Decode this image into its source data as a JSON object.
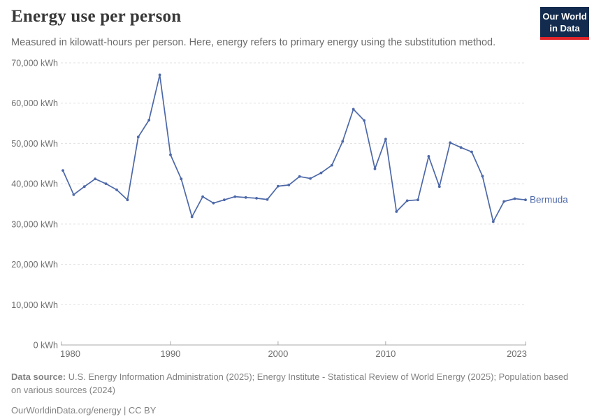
{
  "header": {
    "title": "Energy use per person",
    "subtitle": "Measured in kilowatt-hours per person. Here, energy refers to primary energy using the substitution method.",
    "logo": {
      "line1": "Our World",
      "line2": "in Data"
    }
  },
  "colors": {
    "line": "#4d68a8",
    "logo_bg": "#122b4e",
    "logo_accent": "#e0242a",
    "grid": "#e0e0e0",
    "axis": "#a9a9a9",
    "tick_text": "#6e6e6e"
  },
  "chart_data": {
    "type": "line",
    "title": "Energy use per person",
    "xlabel": "",
    "ylabel": "",
    "unit": "kWh",
    "ylim": [
      0,
      70000
    ],
    "grid": "horizontal-dashed",
    "legend_position": "end-of-line",
    "x": [
      1980,
      1981,
      1982,
      1983,
      1984,
      1985,
      1986,
      1987,
      1988,
      1989,
      1990,
      1991,
      1992,
      1993,
      1994,
      1995,
      1996,
      1997,
      1998,
      1999,
      2000,
      2001,
      2002,
      2003,
      2004,
      2005,
      2006,
      2007,
      2008,
      2009,
      2010,
      2011,
      2012,
      2013,
      2014,
      2015,
      2016,
      2017,
      2018,
      2019,
      2020,
      2021,
      2022,
      2023
    ],
    "series": [
      {
        "name": "Bermuda",
        "color": "#4d68a8",
        "values": [
          43300,
          37300,
          39300,
          41200,
          40000,
          38500,
          36000,
          51600,
          55800,
          67000,
          47200,
          41200,
          31800,
          36800,
          35200,
          36000,
          36800,
          36600,
          36400,
          36100,
          39400,
          39700,
          41800,
          41300,
          42700,
          44600,
          50500,
          58500,
          55700,
          43700,
          51100,
          33100,
          35800,
          36000,
          46800,
          39300,
          50200,
          49000,
          47900,
          41900,
          30600,
          35600,
          36300,
          36000
        ]
      }
    ],
    "y_ticks": [
      0,
      10000,
      20000,
      30000,
      40000,
      50000,
      60000,
      70000
    ],
    "y_tick_labels": [
      "0 kWh",
      "10,000 kWh",
      "20,000 kWh",
      "30,000 kWh",
      "40,000 kWh",
      "50,000 kWh",
      "60,000 kWh",
      "70,000 kWh"
    ],
    "x_tick_years": [
      1980,
      1990,
      2000,
      2010,
      2023
    ],
    "x_tick_labels": [
      "1980",
      "1990",
      "2000",
      "2010",
      "2023"
    ]
  },
  "footer": {
    "data_source_label": "Data source:",
    "data_source_text": "U.S. Energy Information Administration (2025); Energy Institute - Statistical Review of World Energy (2025); Population based on various sources (2024)",
    "link_text": "OurWorldinData.org/energy | CC BY"
  }
}
